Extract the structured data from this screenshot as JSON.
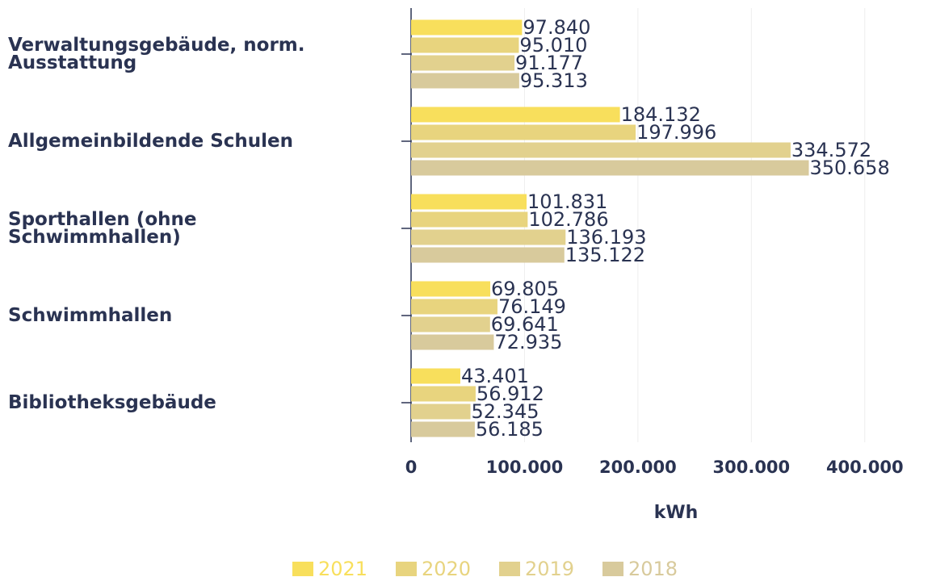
{
  "chart_data": {
    "type": "bar",
    "orientation": "horizontal",
    "x_label": "kWh",
    "categories": [
      "Verwaltungsgebäude, norm. Ausstattung",
      "Allgemeinbildende Schulen",
      "Sporthallen (ohne Schwimmhallen)",
      "Schwimmhallen",
      "Bibliotheksgebäude"
    ],
    "series": [
      {
        "name": "2021",
        "color": "#f8df5c",
        "values": [
          97840,
          184132,
          101831,
          69805,
          43401
        ],
        "value_labels": [
          "97.840",
          "184.132",
          "101.831",
          "69.805",
          "43.401"
        ]
      },
      {
        "name": "2020",
        "color": "#e8d47e",
        "values": [
          95010,
          197996,
          102786,
          76149,
          56912
        ],
        "value_labels": [
          "95.010",
          "197.996",
          "102.786",
          "76.149",
          "56.912"
        ]
      },
      {
        "name": "2019",
        "color": "#e2d18e",
        "values": [
          91177,
          334572,
          136193,
          69641,
          52345
        ],
        "value_labels": [
          "91.177",
          "334.572",
          "136.193",
          "69.641",
          "52.345"
        ]
      },
      {
        "name": "2018",
        "color": "#d8ca9c",
        "values": [
          95313,
          350658,
          135122,
          72935,
          56185
        ],
        "value_labels": [
          "95.313",
          "350.658",
          "135.122",
          "72.935",
          "56.185"
        ]
      }
    ],
    "xlim": [
      0,
      450000
    ],
    "xticks": [
      0,
      {
        "value": 100000,
        "label": "100.000"
      },
      {
        "value": 200000,
        "label": "200.000"
      },
      {
        "value": 300000,
        "label": "300.000"
      },
      {
        "value": 400000,
        "label": "400.000"
      }
    ],
    "grid": true,
    "legend": "bottom"
  }
}
